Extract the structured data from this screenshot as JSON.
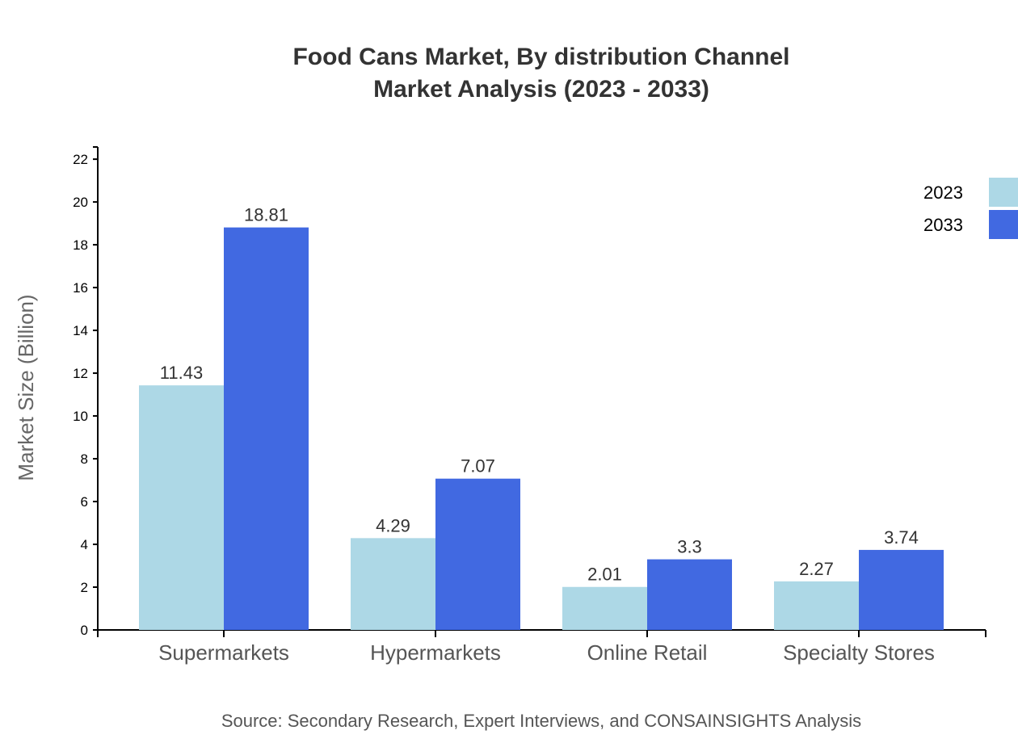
{
  "chart_data": {
    "type": "bar",
    "title": "Food Cans Market, By distribution Channel",
    "subtitle": "Market Analysis (2023 - 2033)",
    "xlabel": "",
    "ylabel": "Market Size (Billion)",
    "categories": [
      "Supermarkets",
      "Hypermarkets",
      "Online Retail",
      "Specialty Stores"
    ],
    "series": [
      {
        "name": "2023",
        "color": "#add8e6",
        "values": [
          11.43,
          4.29,
          2.01,
          2.27
        ]
      },
      {
        "name": "2033",
        "color": "#4169e1",
        "values": [
          18.81,
          7.07,
          3.3,
          3.74
        ]
      }
    ],
    "ylim": [
      0,
      22.57
    ],
    "yticks": [
      0,
      2,
      4,
      6,
      8,
      10,
      12,
      14,
      16,
      18,
      20,
      22
    ],
    "grid": false,
    "legend": "top-right",
    "source": "Source: Secondary Research, Expert Interviews, and CONSAINSIGHTS Analysis"
  }
}
